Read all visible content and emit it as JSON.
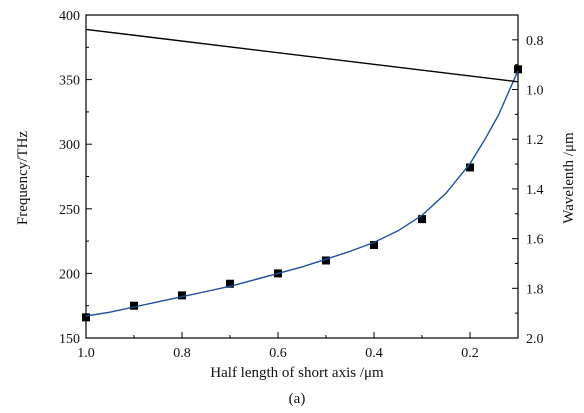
{
  "chart_data": {
    "type": "scatter",
    "caption": "(a)",
    "xlabel": "Half length of short axis /μm",
    "ylabel_left": "Frequency/THz",
    "ylabel_right": "Wavelenth /μm",
    "xlim": [
      1.0,
      0.1
    ],
    "ylim_left": [
      150,
      400
    ],
    "ylim_right": [
      0.7,
      2.0
    ],
    "x_ticks": [
      "1.0",
      "0.8",
      "0.6",
      "0.4",
      "0.2"
    ],
    "y_left_ticks": [
      "150",
      "200",
      "250",
      "300",
      "350",
      "400"
    ],
    "y_right_ticks": [
      "0.8",
      "1.0",
      "1.2",
      "1.4",
      "1.6",
      "1.8",
      "2.0"
    ],
    "series": [
      {
        "type": "scatter",
        "marker": "square",
        "color": "#000000",
        "axis": "left",
        "x": [
          1.0,
          0.9,
          0.8,
          0.7,
          0.6,
          0.5,
          0.4,
          0.3,
          0.2,
          0.1
        ],
        "y": [
          166,
          175,
          183,
          192,
          200,
          210,
          222,
          242,
          282,
          358
        ]
      },
      {
        "type": "line",
        "color": "#1f4e9c",
        "axis": "left",
        "x": [
          1.0,
          0.95,
          0.9,
          0.85,
          0.8,
          0.75,
          0.7,
          0.65,
          0.6,
          0.55,
          0.5,
          0.45,
          0.4,
          0.35,
          0.3,
          0.25,
          0.2,
          0.17,
          0.14,
          0.12,
          0.1
        ],
        "y": [
          167,
          170,
          174,
          178,
          182,
          186,
          190,
          195,
          200,
          205,
          211,
          217,
          224,
          233,
          245,
          262,
          285,
          303,
          323,
          340,
          357
        ]
      },
      {
        "type": "line",
        "color": "#000000",
        "axis": "right",
        "x": [
          1.0,
          0.1
        ],
        "y": [
          0.758,
          0.969
        ]
      }
    ]
  }
}
